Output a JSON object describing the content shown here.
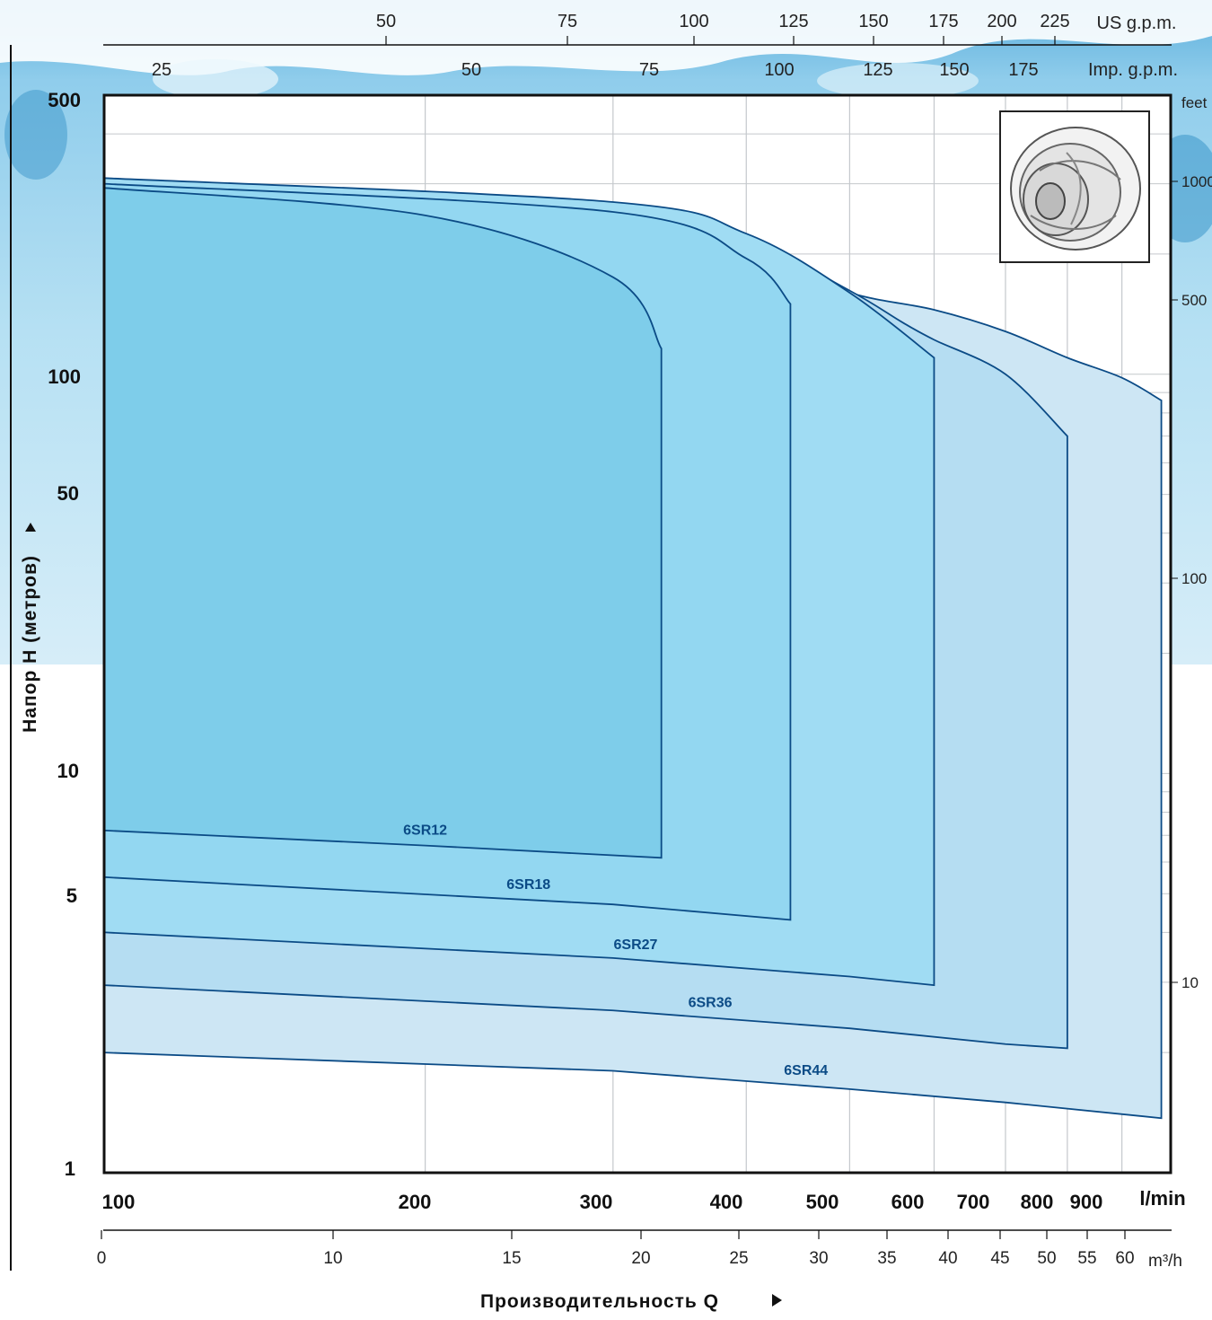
{
  "chart_data": {
    "type": "area",
    "scale": "log-log",
    "grid": true,
    "ylabel": "Напор Н  (метров)",
    "xlabel": "Производительность  Q",
    "x_primary": {
      "unit": "l/min",
      "ticks": [
        "100",
        "200",
        "300",
        "400",
        "500",
        "600",
        "700",
        "800",
        "900"
      ],
      "range": [
        100,
        1000
      ]
    },
    "x_secondary_m3h": {
      "unit": "m³/h",
      "ticks": [
        "0",
        "10",
        "15",
        "20",
        "25",
        "30",
        "35",
        "40",
        "45",
        "50",
        "55",
        "60"
      ]
    },
    "x_top_us": {
      "unit": "US g.p.m.",
      "ticks": [
        "50",
        "75",
        "100",
        "125",
        "150",
        "175",
        "200",
        "225"
      ]
    },
    "x_top_imp": {
      "unit": "Imp. g.p.m.",
      "ticks": [
        "25",
        "50",
        "75",
        "100",
        "125",
        "150",
        "175"
      ]
    },
    "y_primary": {
      "unit": "m",
      "ticks": [
        "500",
        "100",
        "50",
        "10",
        "5",
        "1"
      ],
      "range": [
        1,
        500
      ]
    },
    "y_secondary": {
      "unit": "feet",
      "ticks": [
        "1000",
        "500",
        "100",
        "10"
      ]
    },
    "series": [
      {
        "name": "6SR44",
        "color": "#cde6f4",
        "top": [
          [
            100,
            300
          ],
          [
            300,
            245
          ],
          [
            400,
            200
          ],
          [
            500,
            160
          ],
          [
            600,
            145
          ],
          [
            700,
            128
          ],
          [
            800,
            110
          ],
          [
            900,
            98
          ],
          [
            980,
            86
          ]
        ],
        "bottom": [
          [
            100,
            2.0
          ],
          [
            300,
            1.8
          ],
          [
            500,
            1.62
          ],
          [
            700,
            1.5
          ],
          [
            980,
            1.37
          ]
        ]
      },
      {
        "name": "6SR36",
        "color": "#b5ddf2",
        "top": [
          [
            100,
            307
          ],
          [
            300,
            265
          ],
          [
            400,
            218
          ],
          [
            500,
            162
          ],
          [
            560,
            135
          ],
          [
            600,
            122
          ],
          [
            700,
            100
          ],
          [
            800,
            70
          ]
        ],
        "bottom": [
          [
            100,
            2.95
          ],
          [
            300,
            2.55
          ],
          [
            500,
            2.3
          ],
          [
            700,
            2.1
          ],
          [
            800,
            2.05
          ]
        ]
      },
      {
        "name": "6SR27",
        "color": "#a0dcf3",
        "top": [
          [
            100,
            310
          ],
          [
            300,
            270
          ],
          [
            400,
            225
          ],
          [
            500,
            160
          ],
          [
            600,
            110
          ]
        ],
        "bottom": [
          [
            100,
            4.0
          ],
          [
            300,
            3.45
          ],
          [
            500,
            3.1
          ],
          [
            600,
            2.95
          ]
        ]
      },
      {
        "name": "6SR18",
        "color": "#93d7f1",
        "top": [
          [
            100,
            300
          ],
          [
            300,
            255
          ],
          [
            400,
            195
          ],
          [
            440,
            150
          ]
        ],
        "bottom": [
          [
            100,
            5.5
          ],
          [
            300,
            4.7
          ],
          [
            440,
            4.3
          ]
        ]
      },
      {
        "name": "6SR12",
        "color": "#7ecdea",
        "top": [
          [
            100,
            293
          ],
          [
            200,
            250
          ],
          [
            300,
            175
          ],
          [
            333,
            116
          ]
        ],
        "bottom": [
          [
            100,
            7.2
          ],
          [
            200,
            6.6
          ],
          [
            333,
            6.15
          ]
        ]
      }
    ]
  },
  "colors": {
    "frame": "#111111",
    "grid": "#c4c8cc",
    "curve": "#0b4b86",
    "water": "#5ab4dd",
    "water_light": "#a8daf0"
  },
  "decorations": {
    "background": "water-splash",
    "inset_image": "impeller-icon"
  }
}
